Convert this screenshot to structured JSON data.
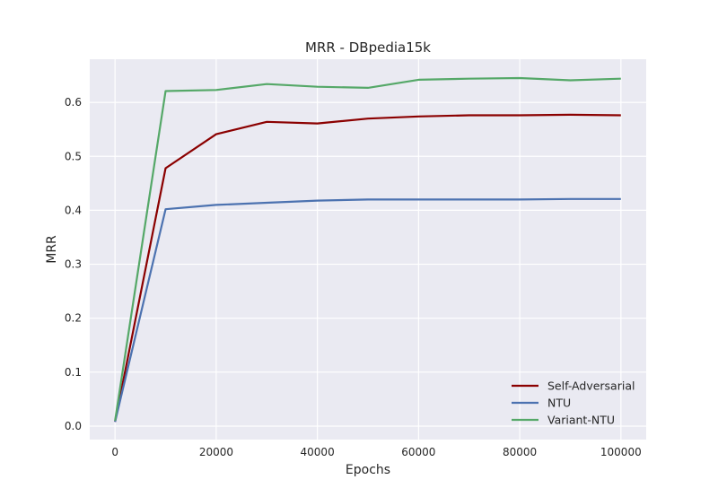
{
  "chart_data": {
    "type": "line",
    "title": "MRR - DBpedia15k",
    "xlabel": "Epochs",
    "ylabel": "MRR",
    "xlim": [
      -5000,
      105000
    ],
    "ylim": [
      -0.025,
      0.68
    ],
    "xticks": [
      0,
      20000,
      40000,
      60000,
      80000,
      100000
    ],
    "yticks": [
      0.0,
      0.1,
      0.2,
      0.3,
      0.4,
      0.5,
      0.6
    ],
    "xtick_labels": [
      "0",
      "20000",
      "40000",
      "60000",
      "80000",
      "100000"
    ],
    "ytick_labels": [
      "0.0",
      "0.1",
      "0.2",
      "0.3",
      "0.4",
      "0.5",
      "0.6"
    ],
    "grid": true,
    "legend_position": "lower-right",
    "x": [
      0,
      10000,
      20000,
      30000,
      40000,
      50000,
      60000,
      70000,
      80000,
      90000,
      100000
    ],
    "series": [
      {
        "name": "Self-Adversarial",
        "color": "#8b0000",
        "values": [
          0.008,
          0.478,
          0.541,
          0.564,
          0.561,
          0.57,
          0.574,
          0.576,
          0.576,
          0.577,
          0.576
        ]
      },
      {
        "name": "NTU",
        "color": "#4c72b0",
        "values": [
          0.008,
          0.402,
          0.41,
          0.414,
          0.418,
          0.42,
          0.42,
          0.42,
          0.42,
          0.421,
          0.421
        ]
      },
      {
        "name": "Variant-NTU",
        "color": "#55a868",
        "values": [
          0.01,
          0.621,
          0.623,
          0.634,
          0.629,
          0.627,
          0.642,
          0.644,
          0.645,
          0.641,
          0.644
        ]
      }
    ]
  },
  "style": {
    "plot_background": "#eaeaf2",
    "grid_color": "#ffffff"
  }
}
